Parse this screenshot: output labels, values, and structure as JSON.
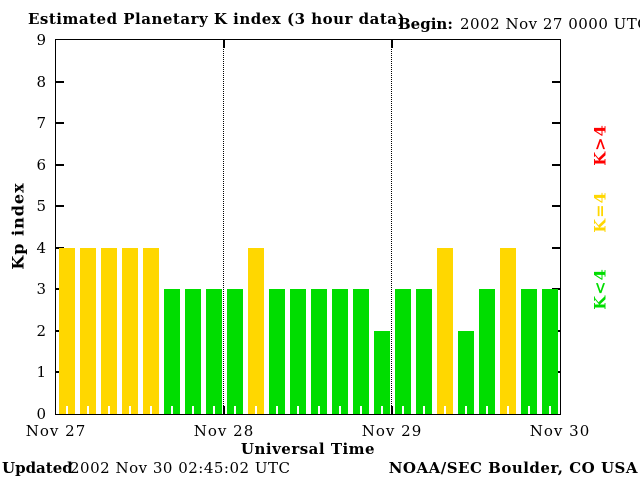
{
  "header": {
    "title": "Estimated Planetary K index (3 hour data)",
    "begin_label": "Begin:",
    "begin_value": "2002 Nov 27 0000 UTC"
  },
  "footer": {
    "updated_label": "Updated",
    "updated_value": "2002 Nov 30 02:45:02 UTC",
    "source": "NOAA/SEC Boulder, CO USA"
  },
  "chart_data": {
    "type": "bar",
    "title": "Estimated Planetary K index (3 hour data)",
    "begin": "2002 Nov 27 0000 UTC",
    "xlabel": "Universal Time",
    "ylabel": "Kp index",
    "ylim": [
      0,
      9
    ],
    "yticks": [
      0,
      1,
      2,
      3,
      4,
      5,
      6,
      7,
      8,
      9
    ],
    "x_day_labels": [
      "Nov 27",
      "Nov 28",
      "Nov 29",
      "Nov 30"
    ],
    "hours_per_bar": 3,
    "bars_per_day": 8,
    "values": [
      4,
      4,
      4,
      4,
      4,
      3,
      3,
      3,
      3,
      4,
      3,
      3,
      3,
      3,
      3,
      2,
      3,
      3,
      4,
      2,
      3,
      4,
      3,
      3
    ],
    "colors": {
      "below_4": "#00dd00",
      "equal_4": "#ffd700",
      "above_4": "#ff0000"
    },
    "legend": [
      {
        "label": "K>4",
        "color": "#ff0000"
      },
      {
        "label": "K=4",
        "color": "#ffd700"
      },
      {
        "label": "K<4",
        "color": "#00dd00"
      }
    ],
    "grid": "dotted vertical lines at day boundaries",
    "legend_position": "right, rotated 90deg"
  }
}
